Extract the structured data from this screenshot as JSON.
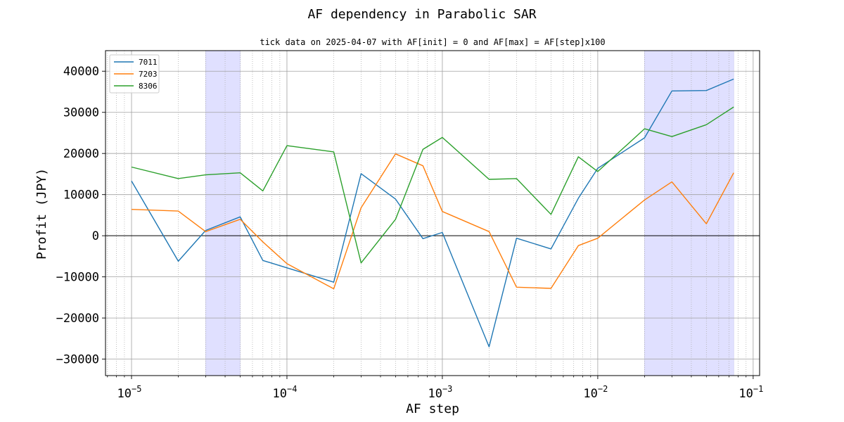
{
  "chart_data": {
    "type": "line",
    "title": "AF dependency in Parabolic SAR",
    "subtitle": "tick data on 2025-04-07 with AF[init] = 0 and AF[max] = AF[step]x100",
    "xlabel": "AF step",
    "ylabel": "Profit (JPY)",
    "xscale": "log",
    "xlim": [
      6.8e-06,
      0.11
    ],
    "ylim": [
      -34000,
      45000
    ],
    "grid": true,
    "legend_position": "top-left",
    "x": [
      1e-05,
      2e-05,
      3e-05,
      5e-05,
      7e-05,
      0.0001,
      0.0002,
      0.0003,
      0.0005,
      0.00075,
      0.001,
      0.002,
      0.003,
      0.005,
      0.0075,
      0.01,
      0.02,
      0.03,
      0.05,
      0.075
    ],
    "series": [
      {
        "name": "7011",
        "color": "#1f77b4",
        "values": [
          13300,
          -6200,
          1300,
          4600,
          -6000,
          -7800,
          -11300,
          15100,
          8900,
          -700,
          800,
          -27000,
          -600,
          -3200,
          9100,
          16400,
          23800,
          35200,
          35300,
          38100
        ]
      },
      {
        "name": "7203",
        "color": "#ff7f0e",
        "values": [
          6400,
          6000,
          1000,
          4000,
          -1500,
          -6800,
          -12900,
          6800,
          19900,
          17000,
          5900,
          1000,
          -12500,
          -12800,
          -2400,
          -600,
          8700,
          13100,
          2900,
          15300
        ]
      },
      {
        "name": "8306",
        "color": "#2ca02c",
        "values": [
          16700,
          13900,
          14800,
          15300,
          10900,
          21900,
          20400,
          -6600,
          4000,
          21000,
          23900,
          13700,
          13900,
          5200,
          19200,
          15600,
          26000,
          24100,
          27000,
          31300
        ]
      }
    ],
    "shaded_x_ranges": [
      [
        3e-05,
        5e-05
      ],
      [
        0.02,
        0.075
      ]
    ],
    "shade_color": "#e0e0ff",
    "zero_line": true,
    "yticks": [
      -30000,
      -20000,
      -10000,
      0,
      10000,
      20000,
      30000,
      40000
    ],
    "ytick_labels": [
      "−30000",
      "−20000",
      "−10000",
      "0",
      "10000",
      "20000",
      "30000",
      "40000"
    ],
    "xticks_major": [
      1e-05,
      0.0001,
      0.001,
      0.01,
      0.1
    ],
    "xtick_labels": [
      {
        "base": "10",
        "exp": "−5"
      },
      {
        "base": "10",
        "exp": "−4"
      },
      {
        "base": "10",
        "exp": "−3"
      },
      {
        "base": "10",
        "exp": "−2"
      },
      {
        "base": "10",
        "exp": "−1"
      }
    ]
  }
}
